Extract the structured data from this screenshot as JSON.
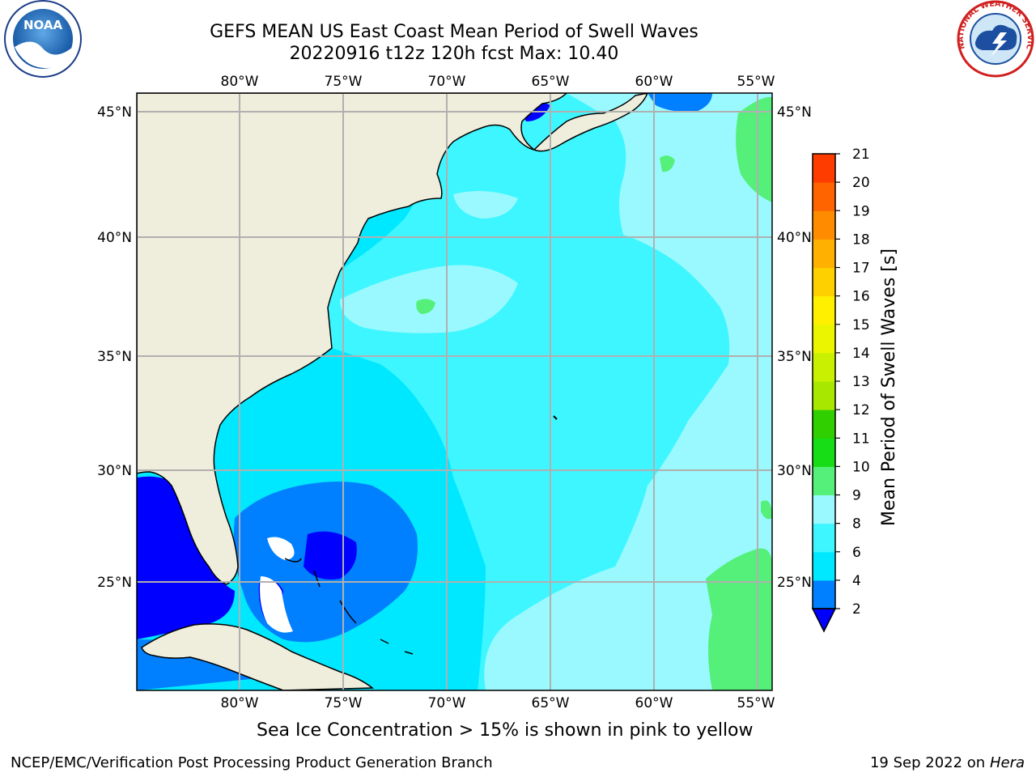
{
  "header": {
    "title_line1": "GEFS MEAN US East Coast Mean Period of Swell Waves",
    "title_line2": "20220916 t12z 120h fcst   Max: 10.40"
  },
  "logos": {
    "left": "NOAA",
    "right": "NATIONAL WEATHER SERVICE"
  },
  "map": {
    "lon_labels": [
      "80°W",
      "75°W",
      "70°W",
      "65°W",
      "60°W",
      "55°W"
    ],
    "lat_labels": [
      "45°N",
      "40°N",
      "35°N",
      "30°N",
      "25°N"
    ],
    "colors": {
      "land": "#efeddc",
      "period_2_4": "#0000ff",
      "period_4_6": "#0080ff",
      "period_6_8": "#00e8ff",
      "period_8_9": "#3ef6ff",
      "period_9_10": "#9af9ff",
      "period_10_11": "#3fe88a",
      "grid": "#b0b0b0"
    }
  },
  "colorbar": {
    "title": "Mean Period of Swell Waves [s]",
    "ticks": [
      "2",
      "4",
      "6",
      "8",
      "9",
      "10",
      "11",
      "12",
      "13",
      "14",
      "15",
      "16",
      "17",
      "18",
      "19",
      "20",
      "21"
    ],
    "bins": [
      "#0080ff",
      "#00e8ff",
      "#3ef6ff",
      "#9af9ff",
      "#54f07a",
      "#17dd17",
      "#2fcf00",
      "#a8e800",
      "#c8f000",
      "#ebf500",
      "#fff000",
      "#ffd000",
      "#ffb000",
      "#ff8c00",
      "#ff6400",
      "#ff3c00",
      "#ff0000"
    ],
    "under_color": "#0000ff"
  },
  "footer": {
    "note": "Sea Ice Concentration > 15% is shown in pink to yellow",
    "credit": "NCEP/EMC/Verification Post Processing Product Generation Branch",
    "date": "19 Sep 2022 on",
    "host": "Hera"
  }
}
